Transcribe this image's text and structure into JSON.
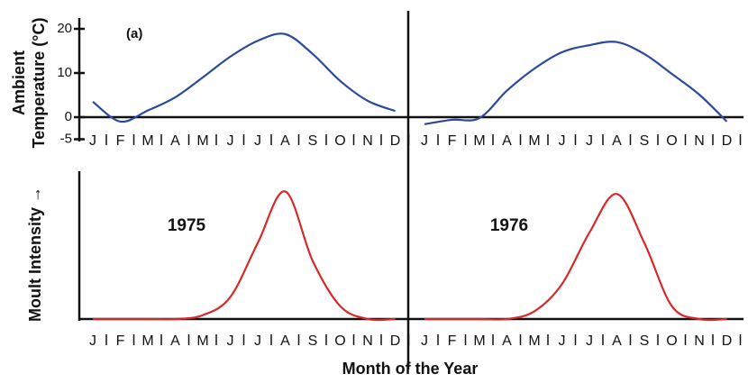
{
  "chart_data": [
    {
      "type": "line",
      "y_label": [
        "Ambient",
        "Temperature (°C)"
      ],
      "annotations": [
        "(a)"
      ],
      "categories": [
        "J",
        "F",
        "M",
        "A",
        "M",
        "J",
        "J",
        "A",
        "S",
        "O",
        "N",
        "D",
        "J",
        "F",
        "M",
        "A",
        "M",
        "J",
        "J",
        "A",
        "S",
        "O",
        "N",
        "D"
      ],
      "values": [
        3.5,
        -1,
        1.5,
        4.5,
        9,
        13.7,
        17.3,
        18.8,
        14.3,
        8.2,
        3.7,
        1.4,
        -1.6,
        -0.6,
        -0.2,
        6,
        11,
        14.7,
        16.3,
        17,
        14.3,
        9.8,
        5.1,
        -1
      ],
      "color": "#2b4a9a",
      "ylim": [
        -5,
        22
      ],
      "yticks": [
        -5,
        0,
        10,
        20
      ]
    },
    {
      "type": "line",
      "y_label": "Moult Intensity →",
      "x_label": "Month of the Year",
      "annotations": [
        "1975",
        "1976"
      ],
      "categories": [
        "J",
        "F",
        "M",
        "A",
        "M",
        "J",
        "J",
        "A",
        "S",
        "O",
        "N",
        "D",
        "J",
        "F",
        "M",
        "A",
        "M",
        "J",
        "J",
        "A",
        "S",
        "O",
        "N",
        "D"
      ],
      "values": [
        0,
        0,
        0,
        0,
        3,
        17,
        59,
        99,
        45,
        10,
        0,
        0,
        0,
        0,
        0,
        0,
        6,
        27,
        67,
        97,
        59,
        10,
        0,
        0
      ],
      "color": "#d62a2a"
    }
  ]
}
